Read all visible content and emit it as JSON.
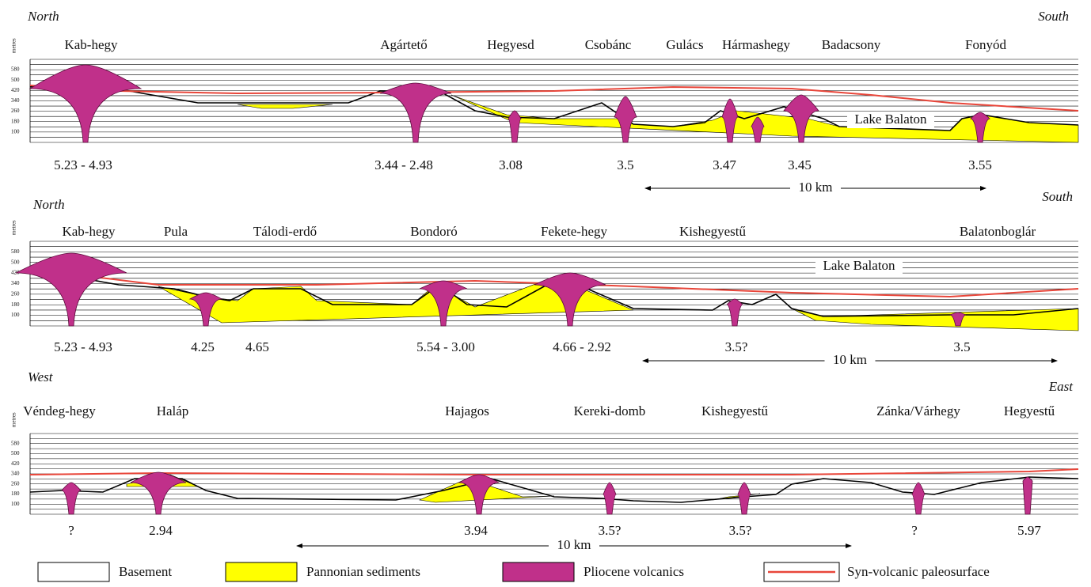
{
  "panels": [
    {
      "left": "North",
      "right": "South",
      "places": [
        "Kab-hegy",
        "Agártető",
        "Hegyesd",
        "Csobánc",
        "Gulács",
        "Hármashegy",
        "Badacsony",
        "Fonyód"
      ],
      "ages": [
        "5.23 - 4.93",
        "3.44 - 2.48",
        "3.08",
        "3.5",
        "3.47",
        "3.45",
        "3.55"
      ],
      "lake": "Lake Balaton",
      "scale": "10 km"
    },
    {
      "left": "North",
      "right": "South",
      "places": [
        "Kab-hegy",
        "Pula",
        "Tálodi-erdő",
        "Bondoró",
        "Fekete-hegy",
        "Kishegyestű",
        "Balatonboglár"
      ],
      "ages": [
        "5.23 - 4.93",
        "4.25",
        "4.65",
        "5.54 - 3.00",
        "4.66 - 2.92",
        "3.5?",
        "3.5"
      ],
      "lake": "Lake Balaton",
      "scale": "10 km"
    },
    {
      "left": "West",
      "right": "East",
      "places": [
        "Véndeg-hegy",
        "Haláp",
        "Hajagos",
        "Kereki-domb",
        "Kishegyestű",
        "Zánka/Várhegy",
        "Hegyestű"
      ],
      "ages": [
        "?",
        "2.94",
        "3.94",
        "3.5?",
        "3.5?",
        "?",
        "5.97"
      ],
      "scale": "10 km"
    }
  ],
  "axis": {
    "unit": "metres",
    "ticks": [
      580,
      500,
      420,
      340,
      260,
      180,
      100
    ]
  },
  "legend": [
    "Basement",
    "Pannonian sediments",
    "Pliocene volcanics",
    "Syn-volcanic paleosurface"
  ]
}
